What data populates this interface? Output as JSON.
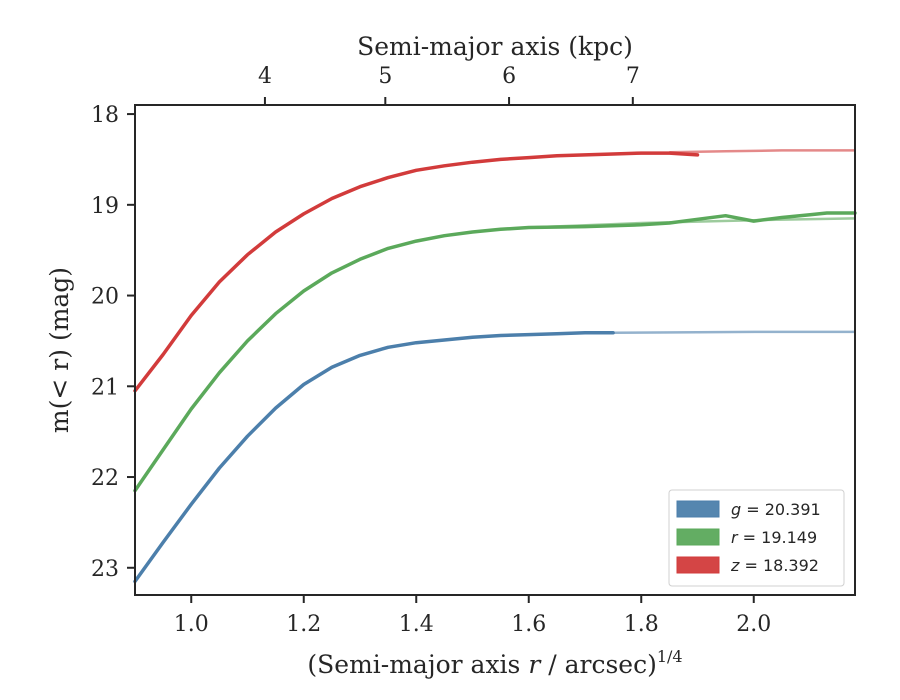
{
  "chart_data": {
    "type": "line",
    "xlabel": "(Semi-major axis r / arcsec)",
    "xlabel_var": "r",
    "xlabel_exp": "1/4",
    "ylabel": "m(< r) (mag)",
    "top_xlabel": "Semi-major axis (kpc)",
    "xlim": [
      0.9,
      2.18
    ],
    "ylim": [
      23.3,
      17.9
    ],
    "y_inverted": true,
    "x_ticks": [
      1.0,
      1.2,
      1.4,
      1.6,
      1.8,
      2.0
    ],
    "x_tick_labels": [
      "1.0",
      "1.2",
      "1.4",
      "1.6",
      "1.8",
      "2.0"
    ],
    "y_ticks": [
      18,
      19,
      20,
      21,
      22,
      23
    ],
    "y_tick_labels": [
      "18",
      "19",
      "20",
      "21",
      "22",
      "23"
    ],
    "top_x_ticks_kpc": [
      4,
      5,
      6,
      7
    ],
    "top_x_tick_labels": [
      "4",
      "5",
      "6",
      "7"
    ],
    "top_x_positions": [
      1.131,
      1.345,
      1.565,
      1.785
    ],
    "grid": false,
    "legend_position": "bottom-right",
    "series": [
      {
        "name": "g = 20.391",
        "legend_var": "g",
        "legend_value": "= 20.391",
        "color": "#4c7fab",
        "x": [
          0.9,
          0.95,
          1.0,
          1.05,
          1.1,
          1.15,
          1.2,
          1.25,
          1.3,
          1.35,
          1.4,
          1.45,
          1.5,
          1.55,
          1.6,
          1.65,
          1.7,
          1.75
        ],
        "y": [
          23.15,
          22.72,
          22.3,
          21.9,
          21.55,
          21.24,
          20.98,
          20.79,
          20.66,
          20.57,
          20.52,
          20.49,
          20.46,
          20.44,
          20.43,
          20.42,
          20.41,
          20.41
        ],
        "model_x": [
          1.75,
          1.9,
          2.0,
          2.1,
          2.18
        ],
        "model_y": [
          20.41,
          20.405,
          20.4,
          20.4,
          20.4
        ]
      },
      {
        "name": "r = 19.149",
        "legend_var": "r",
        "legend_value": "= 19.149",
        "color": "#5ba95b",
        "x": [
          0.9,
          0.95,
          1.0,
          1.05,
          1.1,
          1.15,
          1.2,
          1.25,
          1.3,
          1.35,
          1.4,
          1.45,
          1.5,
          1.55,
          1.6,
          1.7,
          1.8,
          1.85,
          1.9,
          1.95,
          2.0,
          2.05,
          2.1,
          2.13,
          2.18
        ],
        "y": [
          22.15,
          21.7,
          21.25,
          20.85,
          20.5,
          20.2,
          19.95,
          19.75,
          19.6,
          19.48,
          19.4,
          19.34,
          19.3,
          19.27,
          19.25,
          19.24,
          19.22,
          19.2,
          19.16,
          19.12,
          19.18,
          19.14,
          19.11,
          19.09,
          19.09
        ],
        "model_x": [
          1.6,
          1.8,
          2.0,
          2.18
        ],
        "model_y": [
          19.25,
          19.2,
          19.17,
          19.15
        ]
      },
      {
        "name": "z = 18.392",
        "legend_var": "z",
        "legend_value": "= 18.392",
        "color": "#d23b3b",
        "x": [
          0.9,
          0.95,
          1.0,
          1.05,
          1.1,
          1.15,
          1.2,
          1.25,
          1.3,
          1.35,
          1.4,
          1.45,
          1.5,
          1.55,
          1.6,
          1.65,
          1.7,
          1.75,
          1.8,
          1.85,
          1.9
        ],
        "y": [
          21.05,
          20.65,
          20.22,
          19.85,
          19.55,
          19.3,
          19.1,
          18.93,
          18.8,
          18.7,
          18.62,
          18.57,
          18.53,
          18.5,
          18.48,
          18.46,
          18.45,
          18.44,
          18.43,
          18.43,
          18.45
        ],
        "model_x": [
          1.85,
          1.95,
          2.05,
          2.18
        ],
        "model_y": [
          18.42,
          18.41,
          18.4,
          18.4
        ]
      }
    ]
  }
}
